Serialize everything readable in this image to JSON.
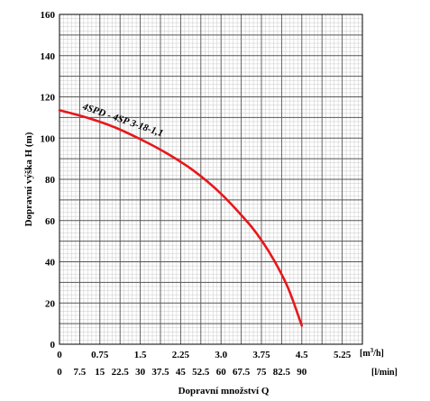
{
  "chart_data": {
    "type": "line",
    "ylabel": "Dopravní výška H (m)",
    "xlabel": "Dopravní množství Q",
    "y_ticks": [
      "0",
      "20",
      "40",
      "60",
      "80",
      "100",
      "120",
      "140",
      "160"
    ],
    "ylim": [
      0,
      160
    ],
    "x_ticks_m3h": [
      "0",
      "0.75",
      "1.5",
      "2.25",
      "3.0",
      "3.75",
      "4.5",
      "5.25"
    ],
    "x_unit_m3h": "[m³/h]",
    "xlim_m3h": [
      0,
      5.625
    ],
    "x_ticks_lmin": [
      "0",
      "7.5",
      "15",
      "22.5",
      "30",
      "37.5",
      "45",
      "52.5",
      "60",
      "67.5",
      "75",
      "82.5",
      "90"
    ],
    "x_unit_lmin": "[l/min]",
    "grid": true,
    "series": [
      {
        "name": "4SPD - 4SP 3-18-1,1",
        "color": "#e8161b",
        "x": [
          0,
          0.5,
          1.0,
          1.5,
          2.0,
          2.5,
          3.0,
          3.5,
          3.75,
          4.0,
          4.25,
          4.5
        ],
        "y": [
          113.5,
          110,
          105.5,
          99.5,
          92.5,
          84,
          73,
          59,
          50.5,
          40,
          27,
          9
        ]
      }
    ]
  }
}
